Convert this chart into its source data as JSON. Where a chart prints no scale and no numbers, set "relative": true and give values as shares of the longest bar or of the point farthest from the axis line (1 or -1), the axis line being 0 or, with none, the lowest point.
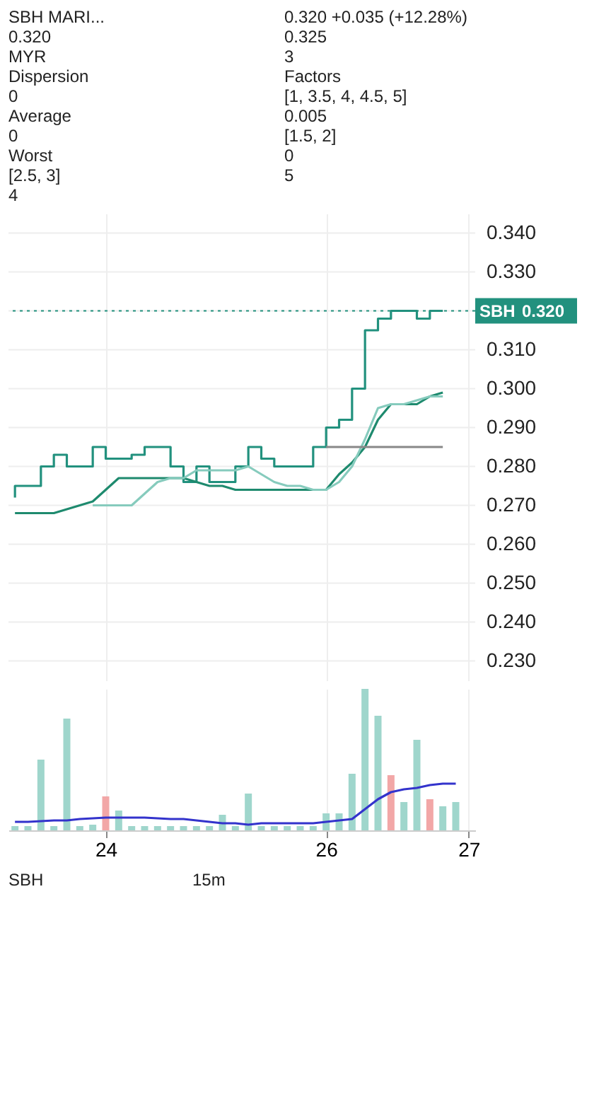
{
  "chart_data": [
    {
      "type": "step",
      "categories": [
        null,
        null,
        null,
        null,
        null,
        null,
        null,
        "24",
        null,
        null,
        null,
        null,
        null,
        null,
        null,
        null,
        null,
        null,
        null,
        null,
        null,
        null,
        null,
        null,
        "26",
        null,
        null,
        null,
        null,
        null,
        null,
        null,
        null,
        null,
        null,
        "27"
      ],
      "ylim": [
        0.225,
        0.345
      ],
      "yticks": [
        {
          "value": 0.23,
          "label": "0.230"
        },
        {
          "value": 0.24,
          "label": "0.240"
        },
        {
          "value": 0.25,
          "label": "0.250"
        },
        {
          "value": 0.26,
          "label": "0.260"
        },
        {
          "value": 0.27,
          "label": "0.270"
        },
        {
          "value": 0.28,
          "label": "0.280"
        },
        {
          "value": 0.29,
          "label": "0.290"
        },
        {
          "value": 0.3,
          "label": "0.300"
        },
        {
          "value": 0.31,
          "label": "0.310"
        },
        {
          "value": 0.32,
          "label": null
        },
        {
          "value": 0.33,
          "label": "0.330"
        },
        {
          "value": 0.34,
          "label": "0.340"
        }
      ],
      "grid": true,
      "tick_labels": "y",
      "series": [
        {
          "color": "#22917e",
          "values": [
            0.272,
            0.275,
            0.275,
            0.28,
            0.283,
            0.28,
            0.28,
            0.285,
            0.282,
            0.282,
            0.283,
            0.285,
            0.285,
            0.28,
            0.276,
            0.28,
            0.276,
            0.276,
            0.28,
            0.285,
            0.282,
            0.28,
            0.28,
            0.28,
            0.285,
            0.29,
            0.292,
            0.3,
            0.315,
            0.318,
            0.32,
            0.32,
            0.318,
            0.32,
            null,
            null
          ]
        },
        {
          "type": "line",
          "color": "#1e8a6e",
          "values": [
            0.268,
            0.268,
            0.268,
            0.268,
            0.269,
            0.27,
            0.271,
            0.274,
            0.277,
            0.277,
            0.277,
            0.277,
            0.277,
            0.277,
            0.276,
            0.275,
            0.275,
            0.274,
            0.274,
            0.274,
            0.274,
            0.274,
            0.274,
            0.274,
            0.274,
            0.278,
            0.281,
            0.285,
            0.292,
            0.296,
            0.296,
            0.296,
            0.298,
            0.299,
            null,
            null
          ]
        },
        {
          "type": "line",
          "color": "#86cbbd",
          "values": [
            null,
            null,
            null,
            null,
            null,
            null,
            0.27,
            0.27,
            0.27,
            0.27,
            0.273,
            0.276,
            0.277,
            0.277,
            0.279,
            0.279,
            0.279,
            0.279,
            0.28,
            0.278,
            0.276,
            0.275,
            0.275,
            0.274,
            0.274,
            0.276,
            0.28,
            0.287,
            0.295,
            0.296,
            0.296,
            0.297,
            0.298,
            0.298,
            null,
            null
          ]
        },
        {
          "type": "line",
          "color": "#888888",
          "values": [
            null,
            null,
            null,
            null,
            null,
            null,
            null,
            null,
            null,
            null,
            null,
            null,
            null,
            null,
            null,
            null,
            null,
            null,
            null,
            null,
            null,
            null,
            null,
            null,
            0.285,
            0.285,
            0.285,
            0.285,
            0.285,
            0.285,
            0.285,
            0.285,
            0.285,
            0.285,
            null,
            null
          ]
        }
      ],
      "ref_lines": [
        {
          "axis": "y",
          "value": 0.32,
          "label": "SBH",
          "line_style": "dotted",
          "color": "#22917e"
        }
      ],
      "annotations": [
        "SBH MARI...",
        "0.320 +0.035 (+12.28%)",
        "0.320",
        "0.325",
        "MYR",
        "3",
        "Dispersion",
        "Factors",
        "0",
        "[1, 3.5, 4, 4.5, 5]",
        "Average",
        "0.005",
        "0",
        "[1.5, 2]",
        "Worst",
        "0",
        "[2.5, 3]",
        "5",
        "4"
      ]
    },
    {
      "type": "bar",
      "relative": true,
      "categories": [
        null,
        null,
        null,
        null,
        null,
        null,
        null,
        "24",
        null,
        null,
        null,
        null,
        null,
        null,
        null,
        null,
        null,
        null,
        null,
        null,
        null,
        null,
        null,
        null,
        "26",
        null,
        null,
        null,
        null,
        null,
        null,
        null,
        null,
        null,
        null,
        "27"
      ],
      "grid": "x",
      "tick_labels": "x",
      "series": [
        {
          "values": [
            0.03,
            0.03,
            0.5,
            0.03,
            0.79,
            0.03,
            0.04,
            0.24,
            0.14,
            0.03,
            0.03,
            0.03,
            0.03,
            0.03,
            0.03,
            0.03,
            0.11,
            0.03,
            0.26,
            0.03,
            0.03,
            0.03,
            0.03,
            0.03,
            0.12,
            0.12,
            0.4,
            1,
            0.81,
            0.39,
            0.2,
            0.64,
            0.22,
            0.17,
            0.2,
            null
          ],
          "colors": [
            "#9fd6cc",
            "#9fd6cc",
            "#9fd6cc",
            "#9fd6cc",
            "#9fd6cc",
            "#9fd6cc",
            "#9fd6cc",
            "#f2a7a7",
            "#9fd6cc",
            "#9fd6cc",
            "#9fd6cc",
            "#9fd6cc",
            "#9fd6cc",
            "#9fd6cc",
            "#9fd6cc",
            "#9fd6cc",
            "#9fd6cc",
            "#9fd6cc",
            "#9fd6cc",
            "#9fd6cc",
            "#9fd6cc",
            "#9fd6cc",
            "#9fd6cc",
            "#9fd6cc",
            "#9fd6cc",
            "#9fd6cc",
            "#9fd6cc",
            "#9fd6cc",
            "#9fd6cc",
            "#f2a7a7",
            "#9fd6cc",
            "#9fd6cc",
            "#f2a7a7",
            "#9fd6cc",
            "#9fd6cc",
            "#9fd6cc"
          ]
        },
        {
          "type": "line",
          "color": "#3333cc",
          "values": [
            0.06,
            0.06,
            0.065,
            0.07,
            0.07,
            0.08,
            0.085,
            0.09,
            0.09,
            0.09,
            0.09,
            0.085,
            0.08,
            0.08,
            0.07,
            0.06,
            0.05,
            0.05,
            0.04,
            0.05,
            0.05,
            0.05,
            0.05,
            0.05,
            0.06,
            0.07,
            0.08,
            0.15,
            0.22,
            0.27,
            0.29,
            0.3,
            0.32,
            0.33,
            0.33,
            null
          ]
        }
      ],
      "annotations": [
        "SBH",
        "15m"
      ]
    }
  ]
}
